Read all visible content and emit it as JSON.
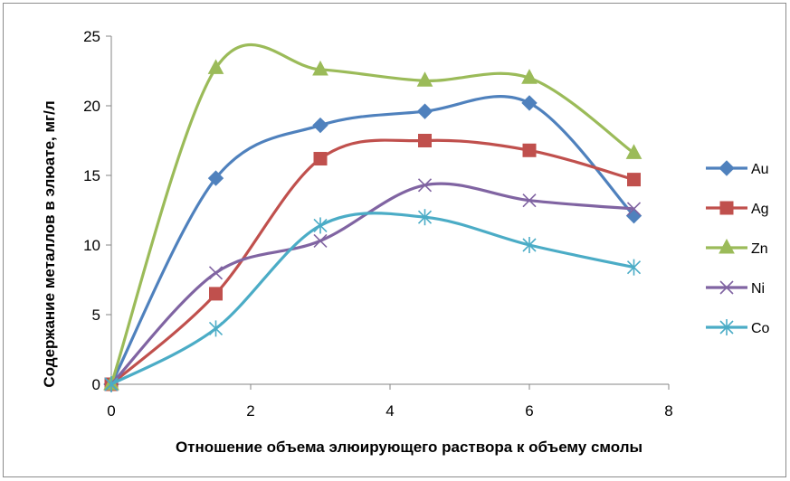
{
  "chart_data": {
    "type": "line",
    "title": "",
    "xlabel": "Отношение объема элюирующего раствора к объему смолы",
    "ylabel": "Содержание металлов в элюате, мг/л",
    "xlim": [
      0,
      8
    ],
    "ylim": [
      0,
      25
    ],
    "xticks": [
      0,
      2,
      4,
      6,
      8
    ],
    "yticks": [
      0,
      5,
      10,
      15,
      20,
      25
    ],
    "grid": false,
    "legend_position": "right",
    "x": [
      0,
      1.5,
      3,
      4.5,
      6,
      7.5
    ],
    "series": [
      {
        "name": "Au",
        "values": [
          0,
          14.8,
          18.6,
          19.6,
          20.2,
          12.1
        ],
        "color": "#4f81bd",
        "marker": "diamond"
      },
      {
        "name": "Ag",
        "values": [
          0,
          6.5,
          16.2,
          17.5,
          16.8,
          14.7
        ],
        "color": "#c0504d",
        "marker": "square"
      },
      {
        "name": "Zn",
        "values": [
          0,
          22.7,
          22.6,
          21.8,
          22.0,
          16.6
        ],
        "color": "#9bbb59",
        "marker": "triangle"
      },
      {
        "name": "Ni",
        "values": [
          0,
          8.0,
          10.3,
          14.3,
          13.2,
          12.6
        ],
        "color": "#8064a2",
        "marker": "x"
      },
      {
        "name": "Co",
        "values": [
          0,
          4.0,
          11.4,
          12.0,
          10.0,
          8.4
        ],
        "color": "#4bacc6",
        "marker": "star"
      }
    ]
  }
}
